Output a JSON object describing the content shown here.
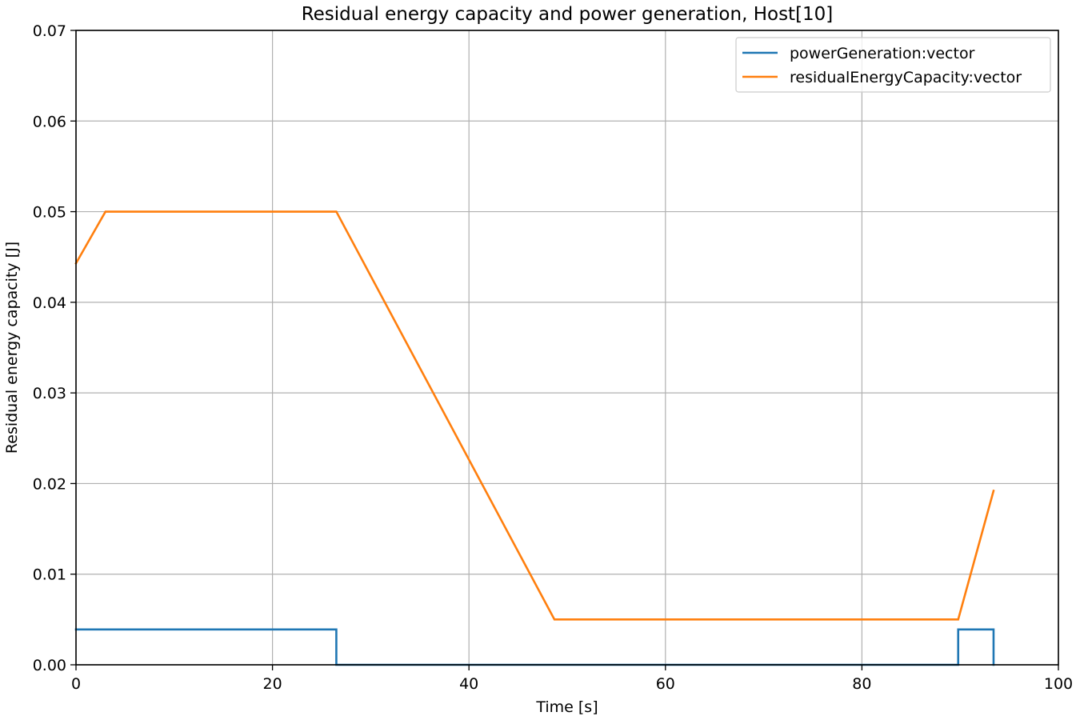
{
  "chart_data": {
    "type": "line",
    "title": "Residual energy capacity and power generation, Host[10]",
    "xlabel": "Time [s]",
    "ylabel": "Residual energy capacity [J]",
    "xlim": [
      0,
      100
    ],
    "ylim": [
      0,
      0.07
    ],
    "x_ticks": [
      0,
      20,
      40,
      60,
      80,
      100
    ],
    "x_tick_labels": [
      "0",
      "20",
      "40",
      "60",
      "80",
      "100"
    ],
    "y_ticks": [
      0,
      0.01,
      0.02,
      0.03,
      0.04,
      0.05,
      0.06,
      0.07
    ],
    "y_tick_labels": [
      "0.00",
      "0.01",
      "0.02",
      "0.03",
      "0.04",
      "0.05",
      "0.06",
      "0.07"
    ],
    "grid": true,
    "legend_position": "top-right",
    "series": [
      {
        "name": "powerGeneration:vector",
        "color": "#1f77b4",
        "x": [
          0,
          26.5,
          26.5,
          89.8,
          89.8,
          93.4,
          93.4
        ],
        "y": [
          0.0039,
          0.0039,
          0,
          0,
          0.0039,
          0.0039,
          0
        ]
      },
      {
        "name": "residualEnergyCapacity:vector",
        "color": "#ff7f0e",
        "x": [
          0,
          3.0,
          26.5,
          48.7,
          89.8,
          93.4
        ],
        "y": [
          0.0443,
          0.05,
          0.05,
          0.005,
          0.005,
          0.0192
        ]
      }
    ]
  }
}
